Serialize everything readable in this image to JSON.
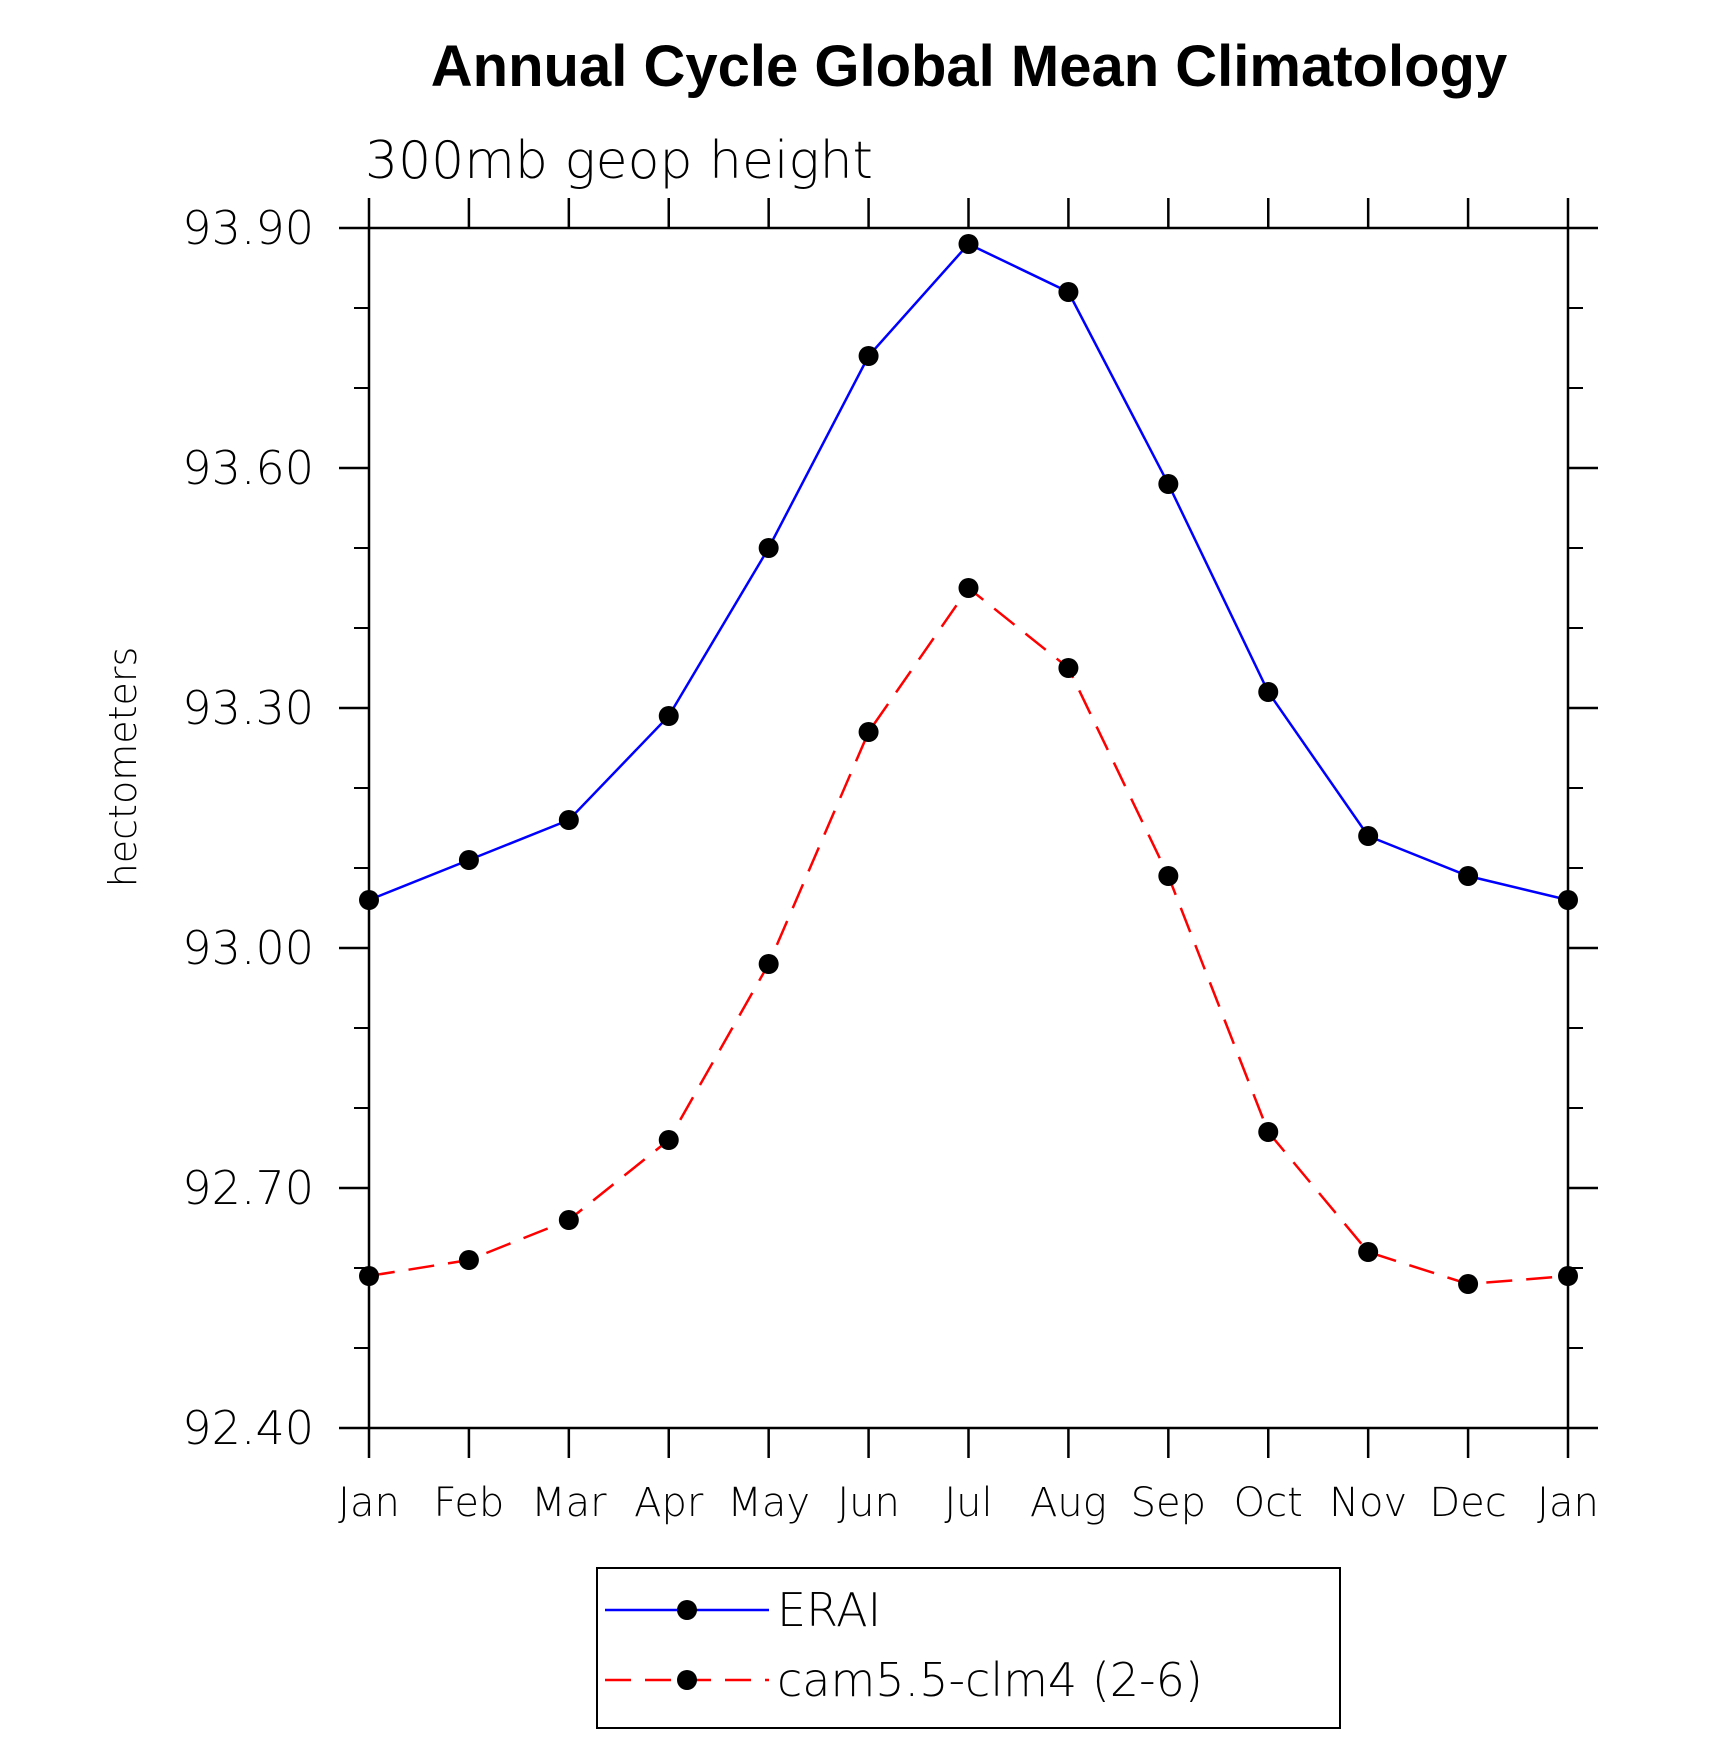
{
  "chart_data": {
    "type": "line",
    "title": "Annual Cycle Global Mean Climatology",
    "subtitle": "300mb geop height",
    "xlabel": "",
    "ylabel": "hectometers",
    "categories": [
      "Jan",
      "Feb",
      "Mar",
      "Apr",
      "May",
      "Jun",
      "Jul",
      "Aug",
      "Sep",
      "Oct",
      "Nov",
      "Dec",
      "Jan"
    ],
    "ylim": [
      92.4,
      93.9
    ],
    "yticks": [
      "93.90",
      "93.60",
      "93.30",
      "93.00",
      "92.70",
      "92.40"
    ],
    "ytick_values": [
      93.9,
      93.6,
      93.3,
      93.0,
      92.7,
      92.4
    ],
    "grid": false,
    "legend_position": "bottom",
    "series": [
      {
        "name": "ERAI",
        "color": "#0000ff",
        "style": "solid",
        "marker": "filled-circle",
        "values": [
          93.06,
          93.11,
          93.16,
          93.29,
          93.5,
          93.74,
          93.88,
          93.82,
          93.58,
          93.32,
          93.14,
          93.09,
          93.06
        ]
      },
      {
        "name": "cam5.5-clm4 (2-6)",
        "color": "#ff0000",
        "style": "dashed",
        "marker": "filled-circle",
        "values": [
          92.59,
          92.61,
          92.66,
          92.76,
          92.98,
          93.27,
          93.45,
          93.35,
          93.09,
          92.77,
          92.62,
          92.58,
          92.59
        ]
      }
    ]
  }
}
